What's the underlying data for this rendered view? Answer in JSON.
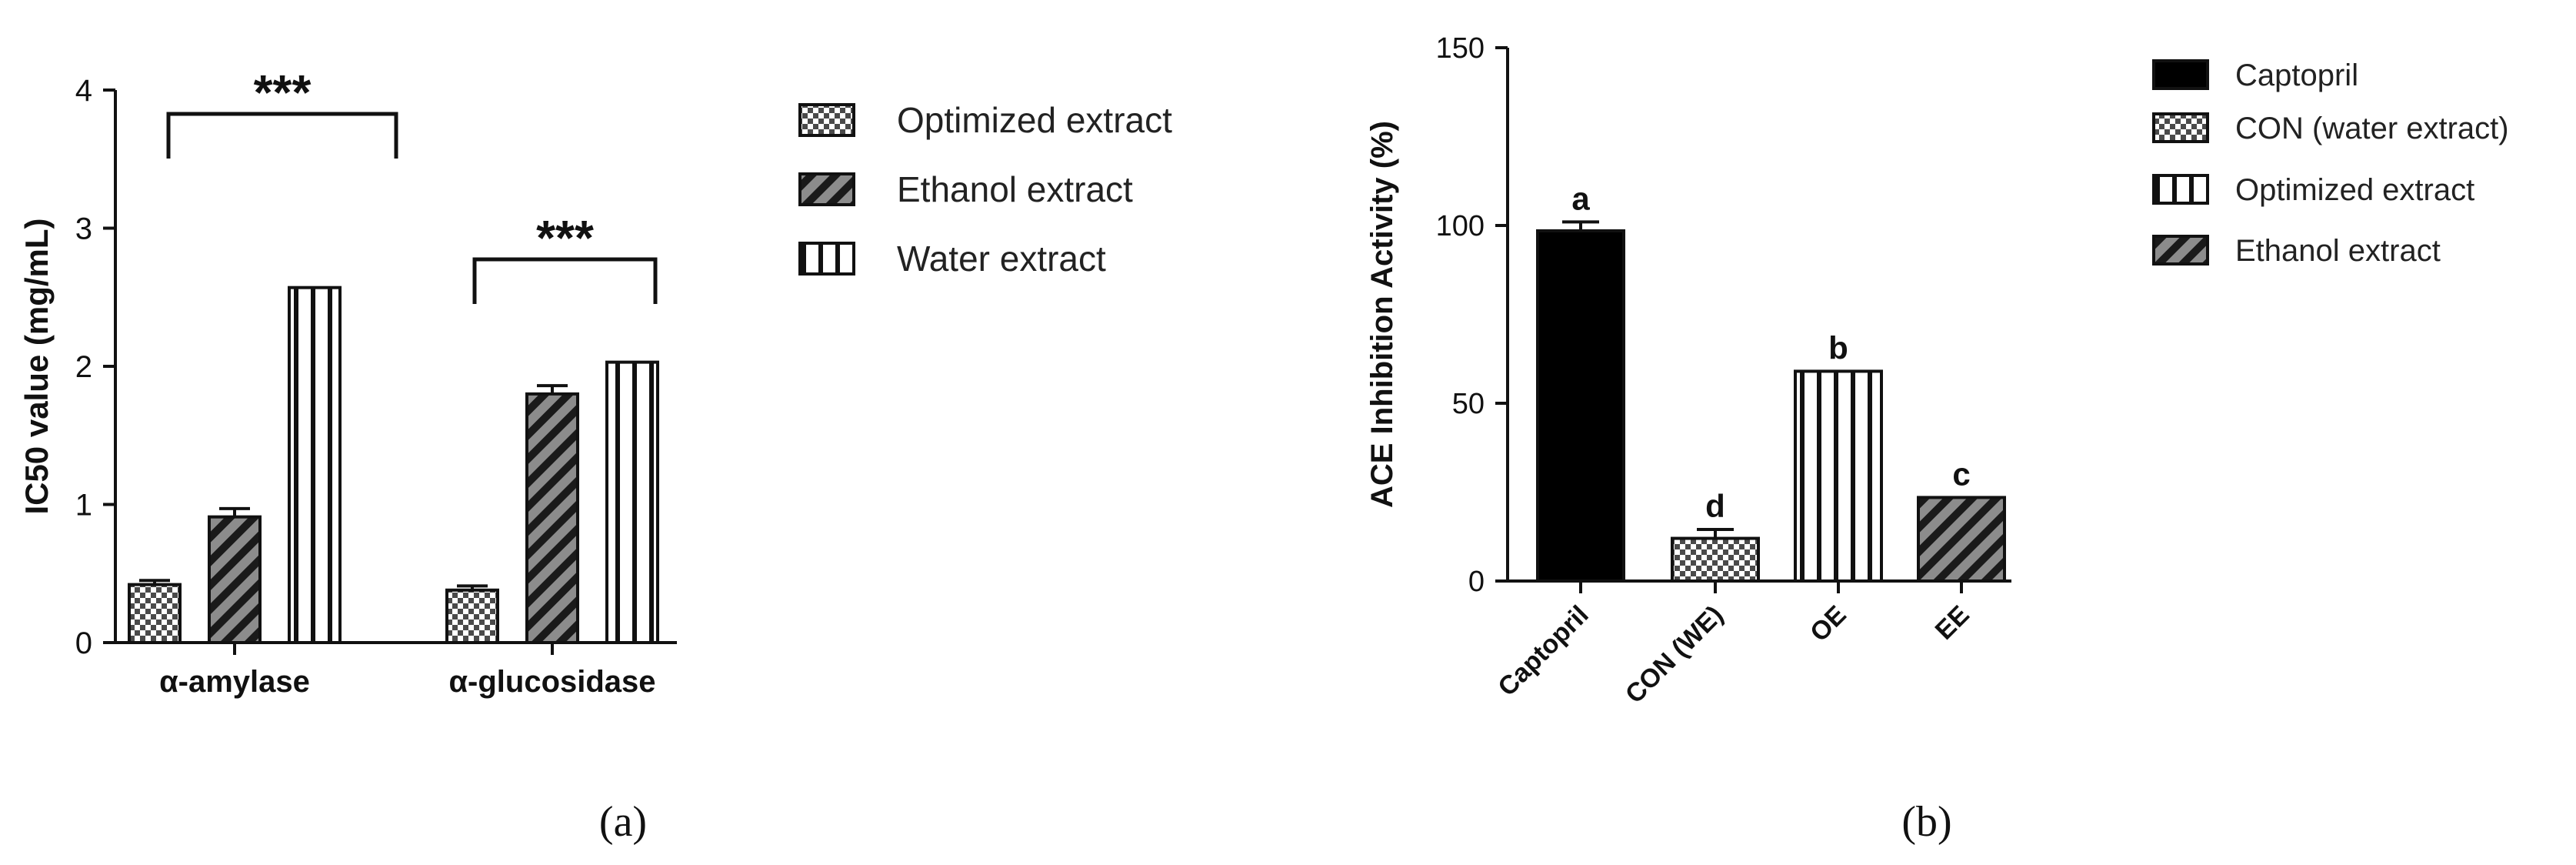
{
  "panels": {
    "a": {
      "caption": "(a)",
      "significance": [
        "***",
        "***"
      ]
    },
    "b": {
      "caption": "(b)"
    }
  },
  "chart_data": [
    {
      "type": "bar",
      "panel": "(a)",
      "categories": [
        "α-amylase",
        "α-glucosidase"
      ],
      "series": [
        {
          "name": "Optimized extract",
          "values": [
            0.42,
            0.38
          ],
          "errors": [
            0.03,
            0.03
          ],
          "pattern": "checker"
        },
        {
          "name": "Ethanol extract",
          "values": [
            0.91,
            1.8
          ],
          "errors": [
            0.06,
            0.06
          ],
          "pattern": "diagonal"
        },
        {
          "name": "Water extract",
          "values": [
            2.57,
            2.03
          ],
          "errors": [
            0.0,
            0.0
          ],
          "pattern": "vertical"
        }
      ],
      "ylabel": "IC50 value (mg/mL)",
      "ylim": [
        0,
        4
      ],
      "yticks": [
        "0",
        "1",
        "2",
        "3",
        "4"
      ],
      "annotations": [
        {
          "text": "***",
          "category": "α-amylase"
        },
        {
          "text": "***",
          "category": "α-glucosidase"
        }
      ],
      "legend": "right",
      "grid": false
    },
    {
      "type": "bar",
      "panel": "(b)",
      "categories": [
        "Captopril",
        "CON (WE)",
        "OE",
        "EE"
      ],
      "values": [
        98.5,
        12,
        59,
        23.5
      ],
      "errors": [
        2.5,
        2.5,
        0,
        0
      ],
      "letters": [
        "a",
        "d",
        "b",
        "c"
      ],
      "patterns": [
        "solid",
        "checker",
        "vertical",
        "diagonal"
      ],
      "ylabel": "ACE Inhibition Activity (%)",
      "ylim": [
        0,
        150
      ],
      "yticks": [
        "0",
        "50",
        "100",
        "150"
      ],
      "legend_entries": [
        "Captopril",
        "CON (water extract)",
        "Optimized extract",
        "Ethanol extract"
      ],
      "legend_patterns": [
        "solid",
        "checker",
        "vertical",
        "diagonal"
      ],
      "legend": "right",
      "grid": false
    }
  ]
}
